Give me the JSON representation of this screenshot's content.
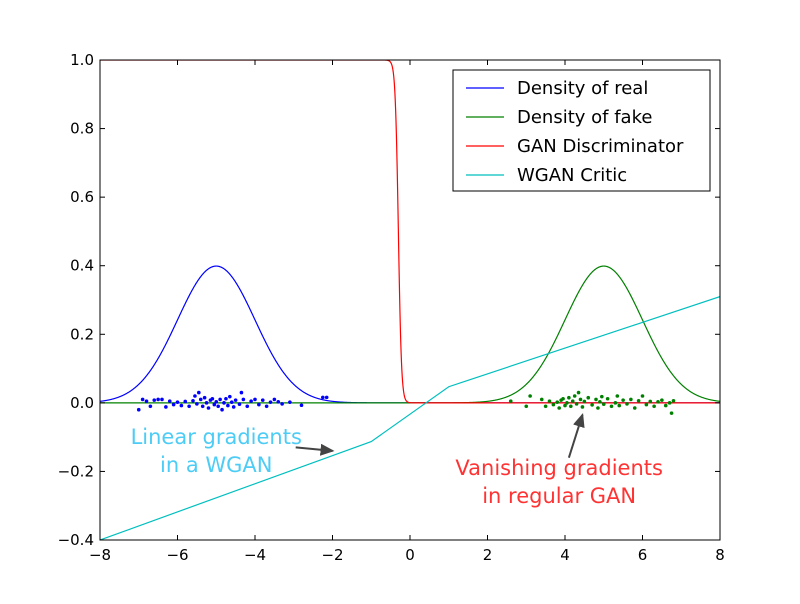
{
  "chart_data": {
    "type": "line",
    "xlim": [
      -8,
      8
    ],
    "ylim": [
      -0.4,
      1.0
    ],
    "xticks": [
      "−8",
      "−6",
      "−4",
      "−2",
      "0",
      "2",
      "4",
      "6",
      "8"
    ],
    "xtick_values": [
      -8,
      -6,
      -4,
      -2,
      0,
      2,
      4,
      6,
      8
    ],
    "yticks": [
      "−0.4",
      "−0.2",
      "0.0",
      "0.2",
      "0.4",
      "0.6",
      "0.8",
      "1.0"
    ],
    "ytick_values": [
      -0.4,
      -0.2,
      0,
      0.2,
      0.4,
      0.6,
      0.8,
      1.0
    ],
    "grid": false,
    "legend_placement": "top-right",
    "series": [
      {
        "name": "Density of real",
        "color": "#0000ff",
        "kind": "gaussian",
        "mean": -5,
        "std": 1
      },
      {
        "name": "Density of fake",
        "color": "#008000",
        "kind": "gaussian",
        "mean": 5,
        "std": 1
      },
      {
        "name": "GAN Discriminator",
        "color": "#ff0000",
        "kind": "sigmoid",
        "center": -0.3,
        "slope": -25
      },
      {
        "name": "WGAN Critic",
        "color": "#00bfbf",
        "kind": "piecewise",
        "points": [
          [
            -8,
            -0.4
          ],
          [
            -1,
            -0.113
          ],
          [
            1,
            0.047
          ],
          [
            8,
            0.31
          ]
        ]
      }
    ],
    "samples": [
      {
        "color": "#0000ff",
        "points": [
          [
            -7,
            -0.02
          ],
          [
            -6.9,
            0.01
          ],
          [
            -6.8,
            0.005
          ],
          [
            -6.7,
            -0.01
          ],
          [
            -6.6,
            0.008
          ],
          [
            -6.5,
            0.01
          ],
          [
            -6.4,
            0.01
          ],
          [
            -6.3,
            -0.012
          ],
          [
            -6.2,
            0.005
          ],
          [
            -6.1,
            -0.005
          ],
          [
            -6.0,
            0.002
          ],
          [
            -5.9,
            -0.008
          ],
          [
            -5.8,
            0.004
          ],
          [
            -5.7,
            -0.01
          ],
          [
            -5.6,
            0.006
          ],
          [
            -5.55,
            0.02
          ],
          [
            -5.5,
            -0.003
          ],
          [
            -5.45,
            0.03
          ],
          [
            -5.4,
            0.01
          ],
          [
            -5.35,
            -0.01
          ],
          [
            -5.3,
            0.015
          ],
          [
            -5.25,
            0.0
          ],
          [
            -5.2,
            -0.015
          ],
          [
            -5.15,
            0.008
          ],
          [
            -5.1,
            0.012
          ],
          [
            -5.05,
            -0.005
          ],
          [
            -5,
            0.003
          ],
          [
            -4.95,
            -0.01
          ],
          [
            -4.9,
            0.01
          ],
          [
            -4.85,
            -0.02
          ],
          [
            -4.8,
            0.0
          ],
          [
            -4.75,
            0.012
          ],
          [
            -4.7,
            -0.008
          ],
          [
            -4.65,
            0.018
          ],
          [
            -4.6,
            0.002
          ],
          [
            -4.55,
            -0.012
          ],
          [
            -4.5,
            0.008
          ],
          [
            -4.4,
            -0.004
          ],
          [
            -4.35,
            0.03
          ],
          [
            -4.3,
            0.01
          ],
          [
            -4.2,
            -0.01
          ],
          [
            -4.1,
            0.005
          ],
          [
            -4.0,
            0.01
          ],
          [
            -3.9,
            -0.005
          ],
          [
            -3.8,
            0.008
          ],
          [
            -3.7,
            -0.01
          ],
          [
            -3.6,
            0.002
          ],
          [
            -3.5,
            0.01
          ],
          [
            -3.4,
            0.003
          ],
          [
            -3.3,
            -0.003
          ],
          [
            -3.1,
            0.002
          ],
          [
            -2.8,
            -0.007
          ],
          [
            -2.25,
            0.016
          ],
          [
            -2.15,
            0.016
          ]
        ]
      },
      {
        "color": "#008000",
        "points": [
          [
            2.6,
            0.005
          ],
          [
            3.0,
            -0.01
          ],
          [
            3.1,
            0.02
          ],
          [
            3.4,
            0.01
          ],
          [
            3.5,
            -0.01
          ],
          [
            3.6,
            0.005
          ],
          [
            3.7,
            -0.005
          ],
          [
            3.8,
            0.002
          ],
          [
            3.85,
            -0.015
          ],
          [
            3.9,
            0.008
          ],
          [
            3.95,
            0.012
          ],
          [
            4.0,
            -0.008
          ],
          [
            4.05,
            0.0
          ],
          [
            4.1,
            0.015
          ],
          [
            4.15,
            -0.01
          ],
          [
            4.2,
            0.005
          ],
          [
            4.25,
            0.02
          ],
          [
            4.3,
            -0.003
          ],
          [
            4.35,
            0.03
          ],
          [
            4.4,
            0.01
          ],
          [
            4.45,
            -0.012
          ],
          [
            4.5,
            0.004
          ],
          [
            4.6,
            0.015
          ],
          [
            4.7,
            -0.006
          ],
          [
            4.8,
            0.01
          ],
          [
            4.85,
            -0.015
          ],
          [
            4.9,
            0.003
          ],
          [
            4.95,
            0.018
          ],
          [
            5.0,
            -0.004
          ],
          [
            5.1,
            0.012
          ],
          [
            5.2,
            -0.01
          ],
          [
            5.3,
            0.0
          ],
          [
            5.35,
            0.02
          ],
          [
            5.4,
            -0.008
          ],
          [
            5.5,
            0.008
          ],
          [
            5.6,
            -0.003
          ],
          [
            5.7,
            0.01
          ],
          [
            5.8,
            -0.015
          ],
          [
            5.9,
            0.006
          ],
          [
            6.0,
            0.02
          ],
          [
            6.1,
            -0.005
          ],
          [
            6.2,
            0.004
          ],
          [
            6.3,
            -0.01
          ],
          [
            6.4,
            0.003
          ],
          [
            6.5,
            0.008
          ],
          [
            6.6,
            -0.008
          ],
          [
            6.7,
            0.0
          ],
          [
            6.75,
            -0.03
          ],
          [
            6.8,
            0.006
          ]
        ]
      }
    ],
    "annotations": [
      {
        "lines": [
          "Linear gradients",
          "in a WGAN"
        ],
        "color": "#4dccf5",
        "text_at": [
          -5,
          -0.12
        ],
        "arrow_from": [
          -2.95,
          -0.13
        ],
        "arrow_to": [
          -2.0,
          -0.14
        ]
      },
      {
        "lines": [
          "Vanishing gradients",
          "in regular GAN"
        ],
        "color": "#ff3333",
        "text_at": [
          3.85,
          -0.21
        ],
        "arrow_from": [
          4.1,
          -0.16
        ],
        "arrow_to": [
          4.45,
          -0.035
        ]
      }
    ]
  }
}
